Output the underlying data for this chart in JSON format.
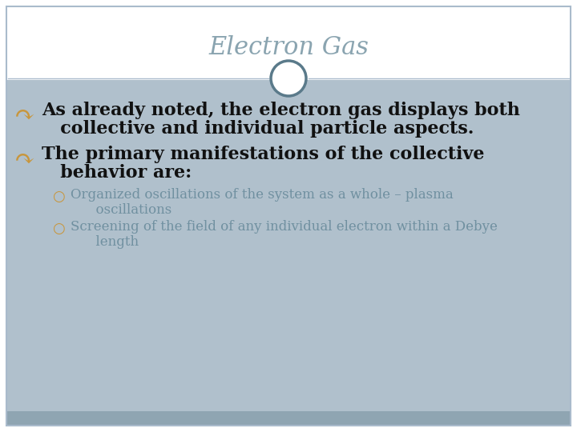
{
  "title": "Electron Gas",
  "title_color": "#8aa4b0",
  "title_fontsize": 22,
  "bg_white": "#ffffff",
  "content_bg": "#b0c0cc",
  "footer_color": "#8fa5b2",
  "border_color": "#aabbcc",
  "circle_edge_color": "#5a7a8a",
  "circle_face_color": "#ffffff",
  "bullet_color": "#c8963c",
  "sub_bullet_color": "#c8963c",
  "main_text_color": "#111111",
  "sub_text_color": "#7090a0",
  "main_fontsize": 16,
  "sub_fontsize": 12,
  "bullet1_line1": "As already noted, the electron gas displays both",
  "bullet1_line2": "   collective and individual particle aspects.",
  "bullet2_line1": "The primary manifestations of the collective",
  "bullet2_line2": "   behavior are:",
  "sub1_line1": "Organized oscillations of the system as a whole – plasma",
  "sub1_line2": "      oscillations",
  "sub2_line1": "Screening of the field of any individual electron within a Debye",
  "sub2_line2": "      length"
}
